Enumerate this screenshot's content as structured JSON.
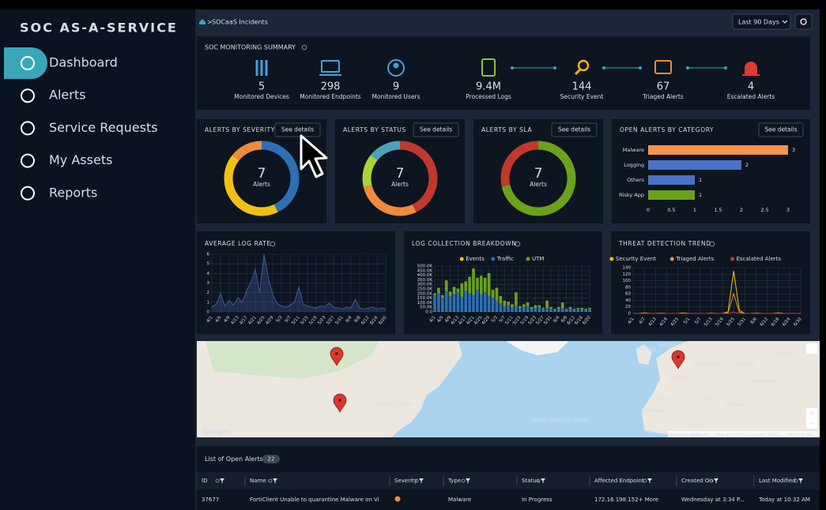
{
  "sidebar": {
    "title": "SOC AS-A-SERVICE",
    "nav": [
      "Dashboard",
      "Alerts",
      "Service Requests",
      "My Assets",
      "Reports"
    ]
  },
  "header": {
    "breadcrumb": "SOCaaS Incidents",
    "range": "Last 90 Days"
  },
  "summary": {
    "title": "SOC MONITORING SUMMARY",
    "items": [
      {
        "value": "5",
        "label": "Monitored Devices"
      },
      {
        "value": "298",
        "label": "Monitored Endpoints"
      },
      {
        "value": "9",
        "label": "Monitored Users"
      },
      {
        "value": "9.4M",
        "label": "Processed Logs"
      },
      {
        "value": "144",
        "label": "Security Event"
      },
      {
        "value": "67",
        "label": "Triaged Alerts"
      },
      {
        "value": "4",
        "label": "Escalated Alerts"
      }
    ]
  },
  "donuts": [
    {
      "type": "pie",
      "title": "ALERTS BY SEVERITY",
      "button": "See details",
      "center_value": "7",
      "center_label": "Alerts",
      "values": [
        3,
        3,
        1
      ],
      "colors": [
        "#2d6fb3",
        "#f2c014",
        "#f08a3c"
      ]
    },
    {
      "type": "pie",
      "title": "ALERTS BY STATUS",
      "button": "See details",
      "center_value": "7",
      "center_label": "Alerts",
      "values": [
        3,
        2,
        1,
        1
      ],
      "colors": [
        "#c0392b",
        "#f08a3c",
        "#a8d43a",
        "#4aa3b8"
      ]
    },
    {
      "type": "pie",
      "title": "ALERTS BY SLA",
      "button": "See details",
      "center_value": "7",
      "center_label": "Alerts",
      "values": [
        5,
        2
      ],
      "colors": [
        "#6aa21c",
        "#c0392b"
      ]
    }
  ],
  "category_chart": {
    "type": "bar",
    "title": "OPEN ALERTS BY CATEGORY",
    "button": "See details",
    "categories": [
      "Malware",
      "Logging",
      "Others",
      "Risky App"
    ],
    "values": [
      3,
      2,
      1,
      1
    ],
    "colors": [
      "#f5954a",
      "#4a72c8",
      "#4a72c8",
      "#6aa21c"
    ],
    "xlim": [
      0,
      3
    ],
    "xticks": [
      0,
      0.5,
      1,
      1.5,
      2,
      2.5,
      3
    ]
  },
  "log_rate": {
    "type": "line",
    "title": "AVERAGE LOG RATE",
    "grid": true,
    "categories": [
      "4/1",
      null,
      "4/5",
      null,
      "4/9",
      null,
      "4/13",
      null,
      "4/17",
      null,
      "4/21",
      null,
      "4/25",
      null,
      "4/29",
      null,
      "5/3",
      null,
      "5/7",
      null,
      "5/11",
      null,
      "5/15",
      null,
      "5/19",
      null,
      "5/23",
      null,
      "5/27",
      null,
      "5/31",
      null,
      "6/4",
      null,
      "6/8",
      null,
      "6/12",
      null,
      "6/16",
      null,
      "6/20"
    ],
    "series": [
      {
        "color": "#3b5a9a",
        "values": [
          0.5,
          0.8,
          1.9,
          0.6,
          1.2,
          0.7,
          1.5,
          1.0,
          2.2,
          3.1,
          4.4,
          2.0,
          6.0,
          3.5,
          1.8,
          0.9,
          0.6,
          0.5,
          0.7,
          1.0,
          2.6,
          0.8,
          0.6,
          0.5,
          0.4,
          0.6,
          0.5,
          0.9,
          0.5,
          0.4,
          0.3,
          0.5,
          0.4,
          1.3,
          0.4,
          0.3,
          0.4,
          0.5,
          0.3,
          0.4,
          0.3
        ]
      }
    ],
    "ylim": [
      0,
      6
    ],
    "yticks": [
      0,
      1,
      2,
      3,
      4,
      5,
      6
    ]
  },
  "log_collection": {
    "type": "stacked_bar",
    "title": "LOG COLLECTION BREAKDOWN",
    "grid": true,
    "categories": [
      "4/1",
      null,
      "4/5",
      null,
      "4/9",
      null,
      "4/13",
      null,
      "4/17",
      null,
      "4/21",
      null,
      "4/25",
      null,
      "4/29",
      null,
      "5/3",
      null,
      "5/7",
      null,
      "5/11",
      null,
      "5/15",
      null,
      "5/19",
      null,
      "5/23",
      null,
      "5/27",
      null,
      "5/31",
      null,
      "6/4",
      null,
      "6/8",
      null,
      "6/12",
      null,
      "6/16",
      null,
      "6/20"
    ],
    "series": [
      {
        "name": "Events",
        "color": "#f2c014",
        "values": [
          3000,
          3000,
          3000,
          3000,
          3000,
          3000,
          3000,
          3000,
          3000,
          3000,
          3000,
          3000,
          3000,
          3000,
          3000,
          3000,
          3000,
          3000,
          3000,
          3000,
          3000,
          3000,
          3000,
          3000,
          3000,
          3000,
          3000,
          3000,
          3000,
          3000,
          3000,
          3000,
          3000,
          3000,
          3000,
          3000,
          3000,
          3000,
          3000,
          3000,
          3000
        ]
      },
      {
        "name": "Traffic",
        "color": "#2d6fb3",
        "values": [
          180000,
          200000,
          150000,
          220000,
          170000,
          190000,
          210000,
          160000,
          230000,
          200000,
          180000,
          240000,
          190000,
          210000,
          170000,
          150000,
          120000,
          90000,
          60000,
          70000,
          50000,
          60000,
          40000,
          50000,
          60000,
          30000,
          40000,
          50000,
          30000,
          40000,
          30000,
          20000,
          30000,
          40000,
          20000,
          30000,
          20000,
          30000,
          20000,
          20000,
          30000
        ]
      },
      {
        "name": "UTM",
        "color": "#6aa21c",
        "values": [
          20000,
          60000,
          30000,
          120000,
          50000,
          80000,
          40000,
          150000,
          100000,
          180000,
          290000,
          130000,
          200000,
          160000,
          250000,
          90000,
          140000,
          80000,
          60000,
          40000,
          30000,
          150000,
          20000,
          30000,
          40000,
          20000,
          30000,
          20000,
          10000,
          80000,
          20000,
          10000,
          20000,
          60000,
          10000,
          20000,
          10000,
          10000,
          20000,
          10000,
          10000
        ]
      }
    ],
    "ylim": [
      0,
      500000
    ],
    "yticks": [
      {
        "value": 0,
        "label": "0.0"
      },
      {
        "value": 50000,
        "label": "50.0K"
      },
      {
        "value": 100000,
        "label": "100.0K"
      },
      {
        "value": 150000,
        "label": "150.0K"
      },
      {
        "value": 200000,
        "label": "200.0K"
      },
      {
        "value": 250000,
        "label": "250.0K"
      },
      {
        "value": 300000,
        "label": "300.0K"
      },
      {
        "value": 350000,
        "label": "350.0K"
      },
      {
        "value": 400000,
        "label": "400.0K"
      },
      {
        "value": 450000,
        "label": "450.0K"
      },
      {
        "value": 500000,
        "label": "500.0K"
      }
    ]
  },
  "threat_trend": {
    "type": "line",
    "title": "THREAT DETECTION TREND",
    "grid": true,
    "categories": [
      "4/1",
      null,
      "4/7",
      null,
      "4/13",
      null,
      "4/19",
      null,
      "4/25",
      null,
      "5/1",
      null,
      "5/7",
      null,
      "5/13",
      null,
      "5/19",
      null,
      "5/25",
      null,
      "5/31",
      null,
      "6/6",
      null,
      "6/12",
      null,
      "6/18",
      null,
      "6/24",
      null,
      "6/30"
    ],
    "series": [
      {
        "name": "Security Event",
        "color": "#f2c014",
        "values": [
          0,
          0,
          2,
          0,
          0,
          1,
          0,
          0,
          0,
          2,
          0,
          0,
          0,
          0,
          1,
          0,
          0,
          5,
          130,
          10,
          0,
          0,
          1,
          0,
          0,
          0,
          2,
          0,
          0,
          0,
          0
        ]
      },
      {
        "name": "Triaged Alerts",
        "color": "#f08a3c",
        "values": [
          0,
          0,
          1,
          0,
          0,
          0,
          0,
          0,
          0,
          1,
          0,
          0,
          0,
          0,
          0,
          0,
          0,
          2,
          60,
          4,
          0,
          0,
          0,
          0,
          0,
          0,
          1,
          0,
          0,
          0,
          0
        ]
      },
      {
        "name": "Escalated Alerts",
        "color": "#c0392b",
        "values": [
          0,
          0,
          0,
          0,
          0,
          0,
          0,
          0,
          0,
          0,
          0,
          0,
          0,
          0,
          0,
          0,
          0,
          0,
          4,
          0,
          0,
          0,
          0,
          0,
          0,
          0,
          0,
          0,
          0,
          0,
          0
        ]
      }
    ],
    "ylim": [
      0,
      140
    ],
    "yticks": [
      0,
      20,
      40,
      60,
      80,
      100,
      120,
      140
    ]
  },
  "map": {
    "labels": [
      "United States",
      "North Atlantic Ocean",
      "Ireland",
      "Kingdom",
      "France",
      "Germany",
      "Poland",
      "Ukraine",
      "Romania",
      "Italy",
      "Greece",
      "Spain",
      "Portugal",
      "Tunisia",
      "Morocco",
      "Algeria"
    ],
    "footer": [
      "Keyboard shortcuts",
      "Map data ©2023 Google, INEGI",
      "Terms of Use"
    ],
    "brand": "Google"
  },
  "table": {
    "title": "List of Open Alerts",
    "count": "22",
    "columns": [
      "ID",
      "Name",
      "Severity",
      "Type",
      "Status",
      "Affected Endpoint",
      "Created On",
      "Last Modified"
    ],
    "rows": [
      [
        "37677",
        "FortiClient Unable to quarantine Malware on Vi",
        "",
        "Malware",
        "In Progress",
        "172.16.198.152+ More",
        "Wednesday at 3:34 P...",
        "Today at 10:32 AM"
      ]
    ]
  }
}
